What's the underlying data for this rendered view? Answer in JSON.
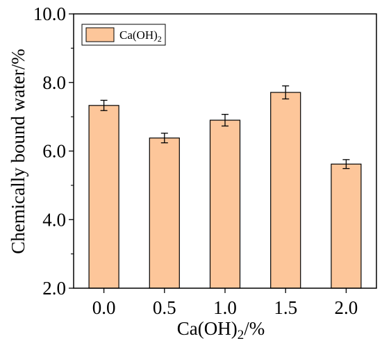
{
  "chart_data": {
    "type": "bar",
    "categories": [
      "0.0",
      "0.5",
      "1.0",
      "1.5",
      "2.0"
    ],
    "series": [
      {
        "name": "Ca(OH)2",
        "values": [
          7.33,
          6.38,
          6.9,
          7.71,
          5.62
        ],
        "errors": [
          0.15,
          0.14,
          0.17,
          0.19,
          0.13
        ]
      }
    ],
    "xlabel": "Ca(OH)2/%",
    "ylabel": "Chemically bound water/%",
    "ylim": [
      2.0,
      10.0
    ],
    "yticks": [
      "2.0",
      "4.0",
      "6.0",
      "8.0",
      "10.0"
    ],
    "legend": {
      "label_main": "Ca(OH)",
      "label_sub": "2",
      "position": "top-left"
    },
    "colors": {
      "bar_fill": "#FDC69A",
      "bar_stroke": "#000000"
    },
    "grid": false
  }
}
